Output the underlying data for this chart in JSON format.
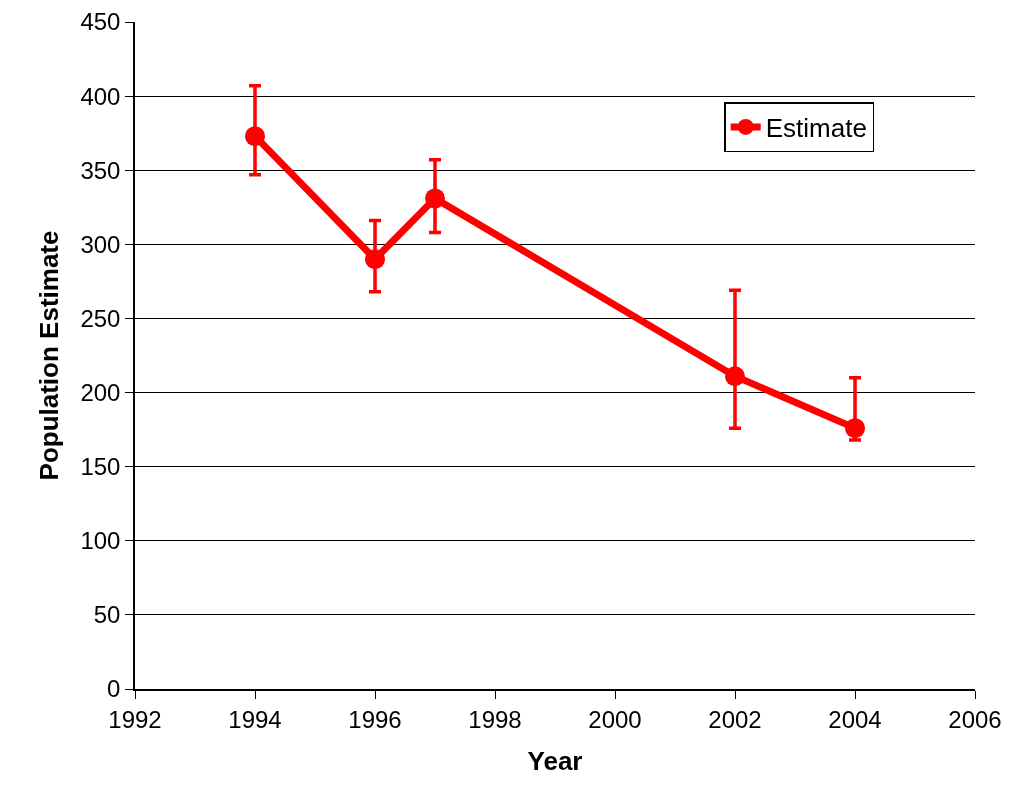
{
  "chart_data": {
    "type": "line",
    "xlabel": "Year",
    "ylabel": "Population Estimate",
    "x": [
      1994,
      1996,
      1997,
      2002,
      2004
    ],
    "series": [
      {
        "name": "Estimate",
        "color": "#ff0000",
        "values": [
          373,
          290,
          331,
          211,
          176
        ],
        "errors": [
          [
            347,
            407
          ],
          [
            268,
            316
          ],
          [
            308,
            357
          ],
          [
            176,
            269
          ],
          [
            168,
            210
          ]
        ]
      }
    ],
    "xlim": [
      1992,
      2006
    ],
    "xticks": [
      1992,
      1994,
      1996,
      1998,
      2000,
      2002,
      2004,
      2006
    ],
    "ylim": [
      0,
      450
    ],
    "yticks": [
      0,
      50,
      100,
      150,
      200,
      250,
      300,
      350,
      400,
      450
    ],
    "grid": "y",
    "legend": "top right",
    "marker": "circle",
    "line_style": "solid"
  }
}
